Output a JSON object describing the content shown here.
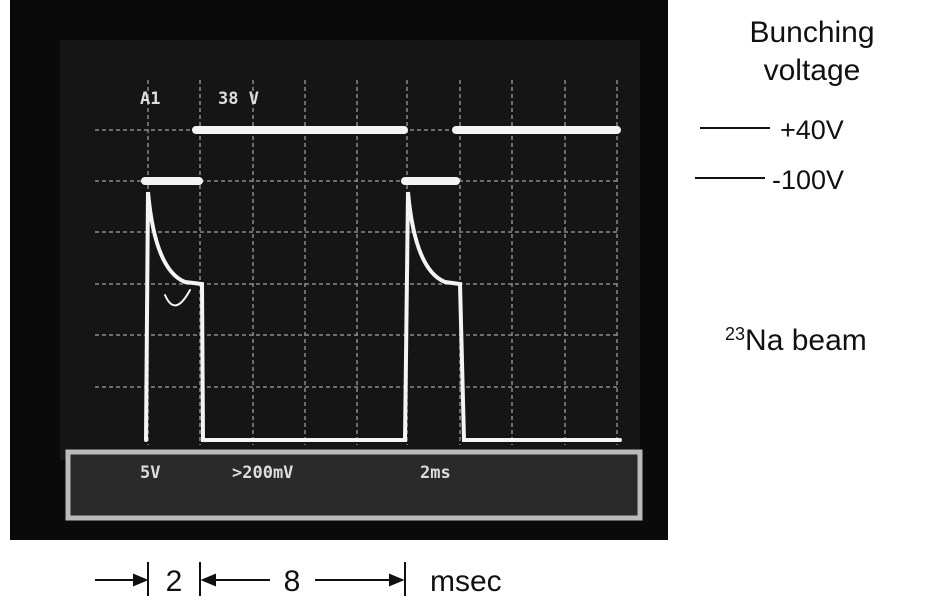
{
  "annotations": {
    "title_lines": [
      "Bunching",
      "voltage"
    ],
    "levels": [
      "+40V",
      "-100V"
    ],
    "beam": {
      "mass": "23",
      "element": "Na beam"
    }
  },
  "scope": {
    "trigger": "A1",
    "trigger_level": "38 V",
    "ch1": "5V",
    "ch2": ">200mV",
    "timebase": "2ms"
  },
  "timing": {
    "intervals": [
      "2",
      "8"
    ],
    "unit": "msec"
  }
}
